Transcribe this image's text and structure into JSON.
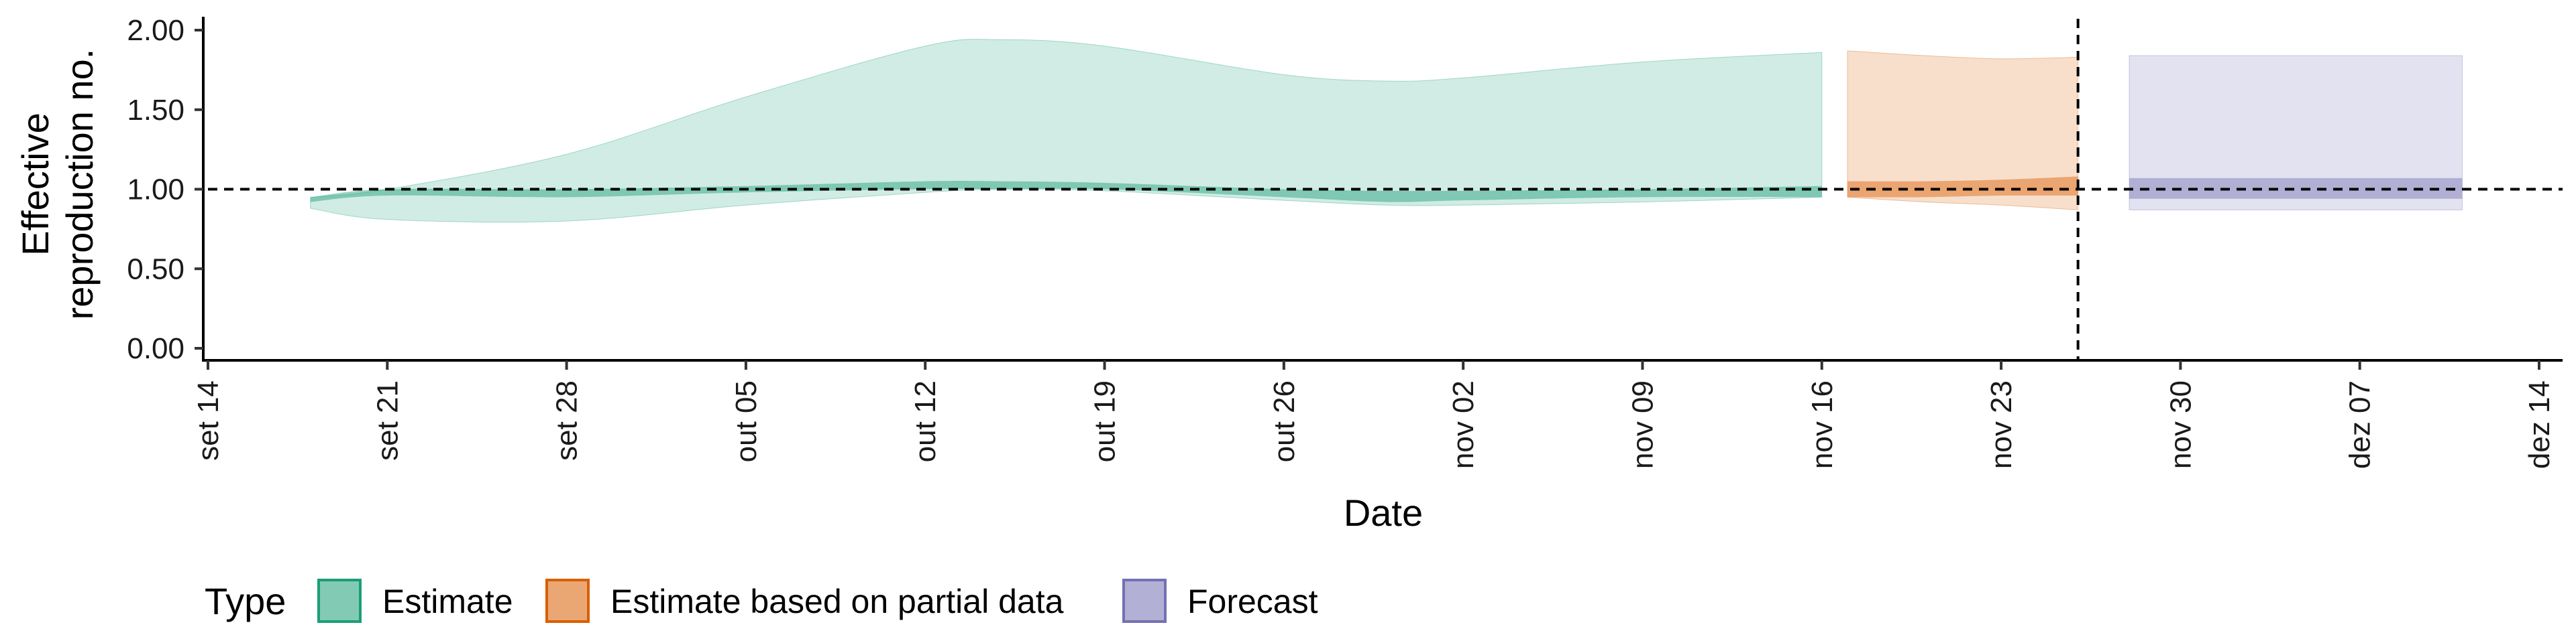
{
  "chart_data": {
    "type": "area",
    "title": "",
    "xlabel": "Date",
    "ylabel": [
      "Effective",
      "reproduction no."
    ],
    "ylim": [
      0,
      2.05
    ],
    "xlim": [
      "2020-09-14",
      "2020-12-14"
    ],
    "y_ticks": [
      0,
      0.5,
      1,
      1.5,
      2
    ],
    "y_tick_labels": [
      "0.00",
      "0.50",
      "1.00",
      "1.50",
      "2.00"
    ],
    "x_ticks": [
      "2020-09-14",
      "2020-09-21",
      "2020-09-28",
      "2020-10-05",
      "2020-10-12",
      "2020-10-19",
      "2020-10-26",
      "2020-11-02",
      "2020-11-09",
      "2020-11-16",
      "2020-11-23",
      "2020-11-30",
      "2020-12-07",
      "2020-12-14"
    ],
    "x_tick_labels": [
      "set 14",
      "set 21",
      "set 28",
      "out 05",
      "out 12",
      "out 19",
      "out 26",
      "nov 02",
      "nov 09",
      "nov 16",
      "nov 23",
      "nov 30",
      "dez 07",
      "dez 14"
    ],
    "reference_hline": 1.0,
    "reference_vline": "2020-11-26",
    "legend_title": "Type",
    "legend_position": "bottom",
    "series": [
      {
        "name": "Estimate",
        "color": "#1b9e77",
        "x": [
          "2020-09-18",
          "2020-09-21",
          "2020-09-28",
          "2020-10-05",
          "2020-10-12",
          "2020-10-15",
          "2020-10-19",
          "2020-10-26",
          "2020-10-30",
          "2020-11-02",
          "2020-11-09",
          "2020-11-16"
        ],
        "outer_lower": [
          0.88,
          0.81,
          0.8,
          0.9,
          0.98,
          1.0,
          0.99,
          0.93,
          0.9,
          0.9,
          0.92,
          0.95
        ],
        "outer_upper": [
          0.95,
          1.0,
          1.22,
          1.58,
          1.9,
          1.94,
          1.9,
          1.72,
          1.68,
          1.7,
          1.8,
          1.86
        ],
        "inner_lower": [
          0.92,
          0.96,
          0.95,
          0.98,
          1.0,
          1.0,
          1.0,
          0.95,
          0.92,
          0.93,
          0.95,
          0.95
        ],
        "inner_upper": [
          0.95,
          1.0,
          1.0,
          1.02,
          1.05,
          1.05,
          1.04,
          1.0,
          0.99,
          0.99,
          1.0,
          1.02
        ]
      },
      {
        "name": "Estimate based on partial data",
        "color": "#d95f02",
        "x": [
          "2020-11-17",
          "2020-11-20",
          "2020-11-23",
          "2020-11-26"
        ],
        "outer_lower": [
          0.95,
          0.92,
          0.9,
          0.87
        ],
        "outer_upper": [
          1.87,
          1.84,
          1.82,
          1.83
        ],
        "inner_lower": [
          0.95,
          0.95,
          0.96,
          0.96
        ],
        "inner_upper": [
          1.05,
          1.05,
          1.06,
          1.08
        ]
      },
      {
        "name": "Forecast",
        "color": "#7570b3",
        "x": [
          "2020-11-28",
          "2020-12-11"
        ],
        "outer_lower": [
          0.87,
          0.87
        ],
        "outer_upper": [
          1.84,
          1.84
        ],
        "inner_lower": [
          0.94,
          0.94
        ],
        "inner_upper": [
          1.07,
          1.07
        ]
      }
    ]
  }
}
